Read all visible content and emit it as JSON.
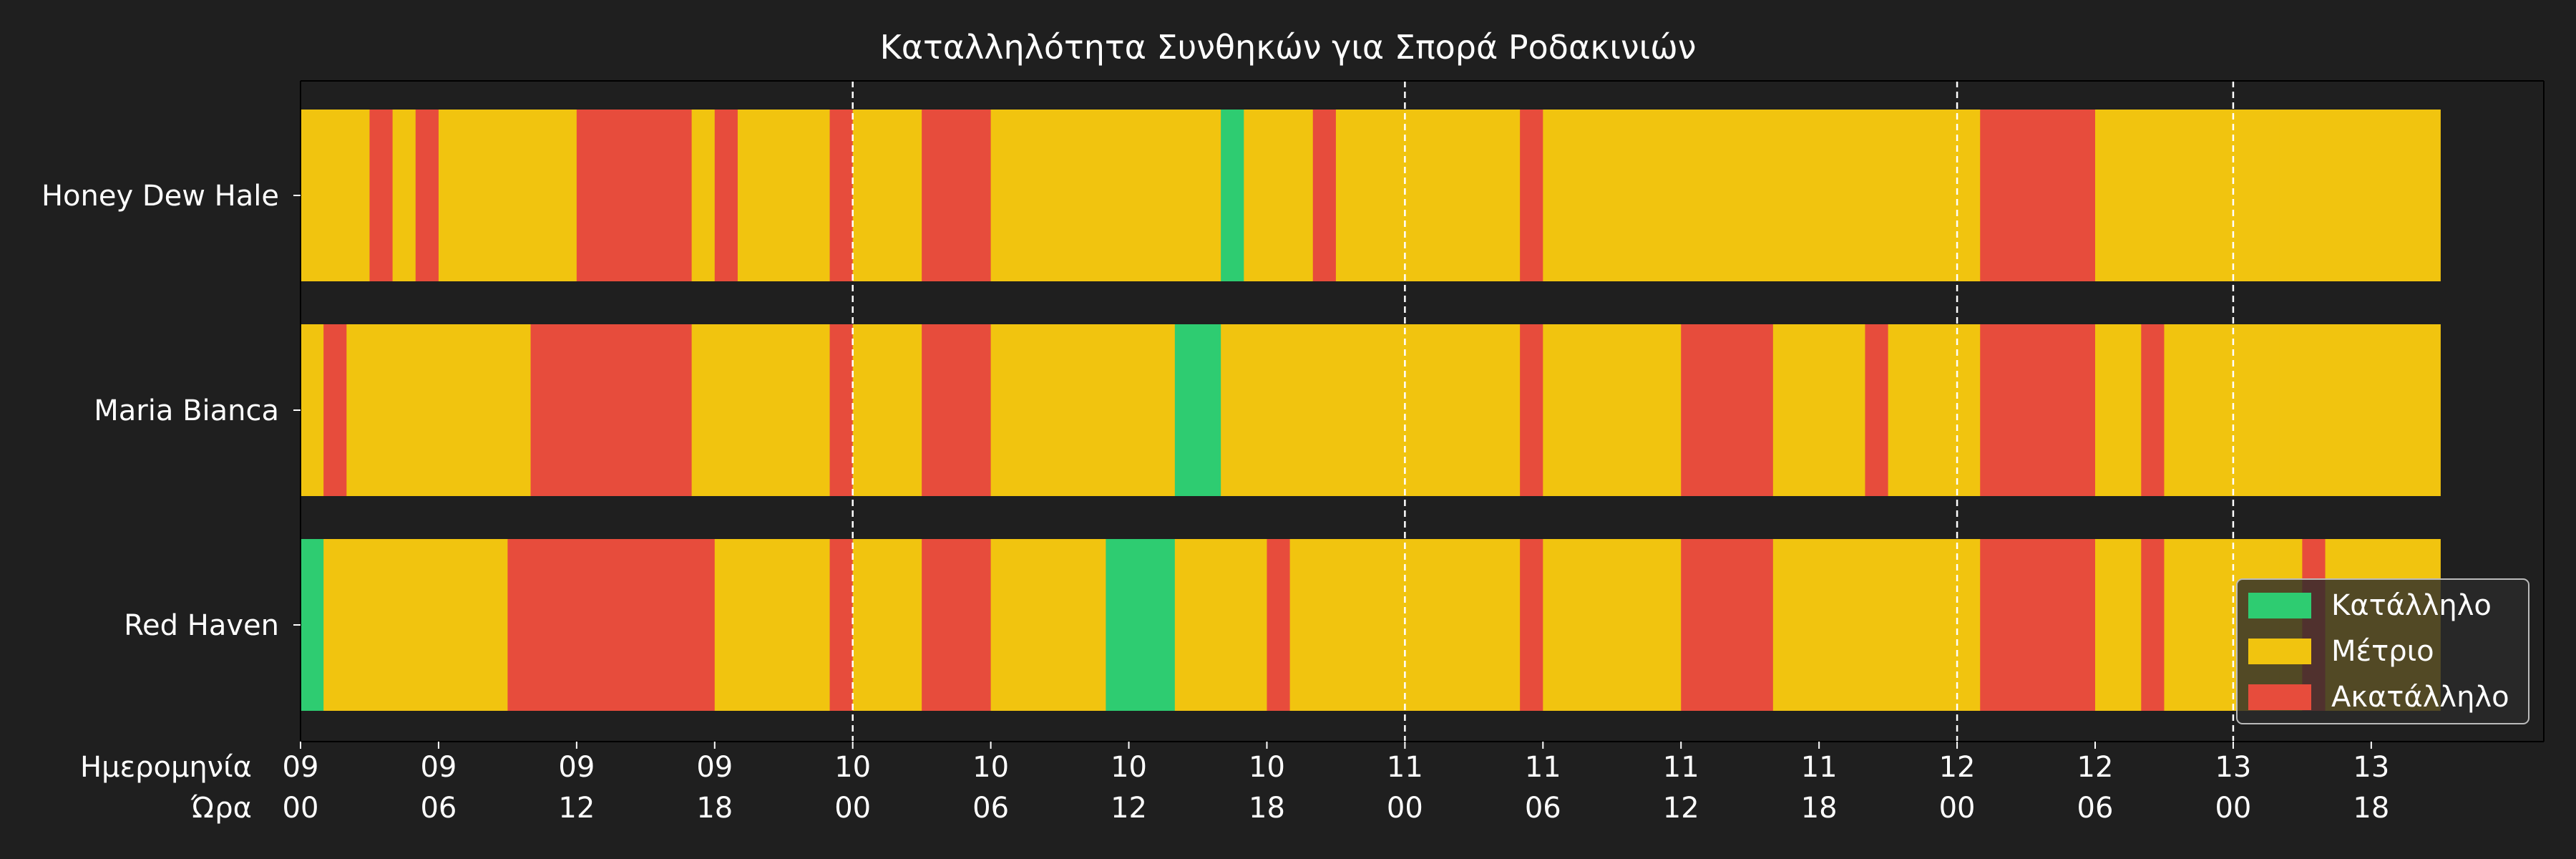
{
  "chart_data": {
    "type": "heatmap",
    "title": "Καταλληλότητα Συνθηκών για Σπορά Ροδακινιών",
    "x_row_labels": [
      "Ημερομηνία",
      "Ώρα"
    ],
    "x_unit": "hours",
    "x_ticks": [
      {
        "hour": 0,
        "day": "09",
        "time": "00"
      },
      {
        "hour": 6,
        "day": "09",
        "time": "06"
      },
      {
        "hour": 12,
        "day": "09",
        "time": "12"
      },
      {
        "hour": 18,
        "day": "09",
        "time": "18"
      },
      {
        "hour": 24,
        "day": "10",
        "time": "00"
      },
      {
        "hour": 30,
        "day": "10",
        "time": "06"
      },
      {
        "hour": 36,
        "day": "10",
        "time": "12"
      },
      {
        "hour": 42,
        "day": "10",
        "time": "18"
      },
      {
        "hour": 48,
        "day": "11",
        "time": "00"
      },
      {
        "hour": 54,
        "day": "11",
        "time": "06"
      },
      {
        "hour": 60,
        "day": "11",
        "time": "12"
      },
      {
        "hour": 66,
        "day": "11",
        "time": "18"
      },
      {
        "hour": 72,
        "day": "12",
        "time": "00"
      },
      {
        "hour": 78,
        "day": "12",
        "time": "06"
      },
      {
        "hour": 84,
        "day": "13",
        "time": "00"
      },
      {
        "hour": 90,
        "day": "13",
        "time": "18"
      }
    ],
    "day_boundaries": [
      24,
      48,
      72,
      84
    ],
    "xlim": [
      0,
      97.5
    ],
    "data_range": [
      0,
      93
    ],
    "categories": [
      "Κατάλληλο",
      "Μέτριο",
      "Ακατάλληλο"
    ],
    "colors": {
      "Κατάλληλο": "#2ecc71",
      "Μέτριο": "#f1c40f",
      "Ακατάλληλο": "#e74c3c"
    },
    "legend_position": "bottom-right",
    "series": [
      {
        "name": "Honey Dew Hale",
        "segments": [
          {
            "start": 0,
            "end": 3,
            "status": "Μέτριο"
          },
          {
            "start": 3,
            "end": 4,
            "status": "Ακατάλληλο"
          },
          {
            "start": 4,
            "end": 5,
            "status": "Μέτριο"
          },
          {
            "start": 5,
            "end": 6,
            "status": "Ακατάλληλο"
          },
          {
            "start": 6,
            "end": 12,
            "status": "Μέτριο"
          },
          {
            "start": 12,
            "end": 17,
            "status": "Ακατάλληλο"
          },
          {
            "start": 17,
            "end": 18,
            "status": "Μέτριο"
          },
          {
            "start": 18,
            "end": 19,
            "status": "Ακατάλληλο"
          },
          {
            "start": 19,
            "end": 23,
            "status": "Μέτριο"
          },
          {
            "start": 23,
            "end": 24,
            "status": "Ακατάλληλο"
          },
          {
            "start": 24,
            "end": 27,
            "status": "Μέτριο"
          },
          {
            "start": 27,
            "end": 30,
            "status": "Ακατάλληλο"
          },
          {
            "start": 30,
            "end": 40,
            "status": "Μέτριο"
          },
          {
            "start": 40,
            "end": 41,
            "status": "Κατάλληλο"
          },
          {
            "start": 41,
            "end": 44,
            "status": "Μέτριο"
          },
          {
            "start": 44,
            "end": 45,
            "status": "Ακατάλληλο"
          },
          {
            "start": 45,
            "end": 53,
            "status": "Μέτριο"
          },
          {
            "start": 53,
            "end": 54,
            "status": "Ακατάλληλο"
          },
          {
            "start": 54,
            "end": 73,
            "status": "Μέτριο"
          },
          {
            "start": 73,
            "end": 78,
            "status": "Ακατάλληλο"
          },
          {
            "start": 78,
            "end": 86,
            "status": "Μέτριο"
          },
          {
            "start": 86,
            "end": 93,
            "status": "Μέτριο"
          }
        ]
      },
      {
        "name": "Maria Bianca",
        "segments": [
          {
            "start": 0,
            "end": 1,
            "status": "Μέτριο"
          },
          {
            "start": 1,
            "end": 2,
            "status": "Ακατάλληλο"
          },
          {
            "start": 2,
            "end": 10,
            "status": "Μέτριο"
          },
          {
            "start": 10,
            "end": 17,
            "status": "Ακατάλληλο"
          },
          {
            "start": 17,
            "end": 23,
            "status": "Μέτριο"
          },
          {
            "start": 23,
            "end": 24,
            "status": "Ακατάλληλο"
          },
          {
            "start": 24,
            "end": 27,
            "status": "Μέτριο"
          },
          {
            "start": 27,
            "end": 30,
            "status": "Ακατάλληλο"
          },
          {
            "start": 30,
            "end": 38,
            "status": "Μέτριο"
          },
          {
            "start": 38,
            "end": 40,
            "status": "Κατάλληλο"
          },
          {
            "start": 40,
            "end": 53,
            "status": "Μέτριο"
          },
          {
            "start": 53,
            "end": 54,
            "status": "Ακατάλληλο"
          },
          {
            "start": 54,
            "end": 60,
            "status": "Μέτριο"
          },
          {
            "start": 60,
            "end": 64,
            "status": "Ακατάλληλο"
          },
          {
            "start": 64,
            "end": 68,
            "status": "Μέτριο"
          },
          {
            "start": 68,
            "end": 69,
            "status": "Ακατάλληλο"
          },
          {
            "start": 69,
            "end": 73,
            "status": "Μέτριο"
          },
          {
            "start": 73,
            "end": 78,
            "status": "Ακατάλληλο"
          },
          {
            "start": 78,
            "end": 80,
            "status": "Μέτριο"
          },
          {
            "start": 80,
            "end": 81,
            "status": "Ακατάλληλο"
          },
          {
            "start": 81,
            "end": 86,
            "status": "Μέτριο"
          },
          {
            "start": 86,
            "end": 93,
            "status": "Μέτριο"
          }
        ]
      },
      {
        "name": "Red Haven",
        "segments": [
          {
            "start": 0,
            "end": 1,
            "status": "Κατάλληλο"
          },
          {
            "start": 1,
            "end": 9,
            "status": "Μέτριο"
          },
          {
            "start": 9,
            "end": 18,
            "status": "Ακατάλληλο"
          },
          {
            "start": 18,
            "end": 23,
            "status": "Μέτριο"
          },
          {
            "start": 23,
            "end": 24,
            "status": "Ακατάλληλο"
          },
          {
            "start": 24,
            "end": 27,
            "status": "Μέτριο"
          },
          {
            "start": 27,
            "end": 30,
            "status": "Ακατάλληλο"
          },
          {
            "start": 30,
            "end": 35,
            "status": "Μέτριο"
          },
          {
            "start": 35,
            "end": 38,
            "status": "Κατάλληλο"
          },
          {
            "start": 38,
            "end": 42,
            "status": "Μέτριο"
          },
          {
            "start": 42,
            "end": 43,
            "status": "Ακατάλληλο"
          },
          {
            "start": 43,
            "end": 53,
            "status": "Μέτριο"
          },
          {
            "start": 53,
            "end": 54,
            "status": "Ακατάλληλο"
          },
          {
            "start": 54,
            "end": 60,
            "status": "Μέτριο"
          },
          {
            "start": 60,
            "end": 64,
            "status": "Ακατάλληλο"
          },
          {
            "start": 64,
            "end": 73,
            "status": "Μέτριο"
          },
          {
            "start": 73,
            "end": 78,
            "status": "Ακατάλληλο"
          },
          {
            "start": 78,
            "end": 80,
            "status": "Μέτριο"
          },
          {
            "start": 80,
            "end": 81,
            "status": "Ακατάλληλο"
          },
          {
            "start": 81,
            "end": 86,
            "status": "Μέτριο"
          },
          {
            "start": 86,
            "end": 87,
            "status": "Μέτριο"
          },
          {
            "start": 87,
            "end": 88,
            "status": "Ακατάλληλο"
          },
          {
            "start": 88,
            "end": 93,
            "status": "Μέτριο"
          }
        ]
      }
    ]
  }
}
